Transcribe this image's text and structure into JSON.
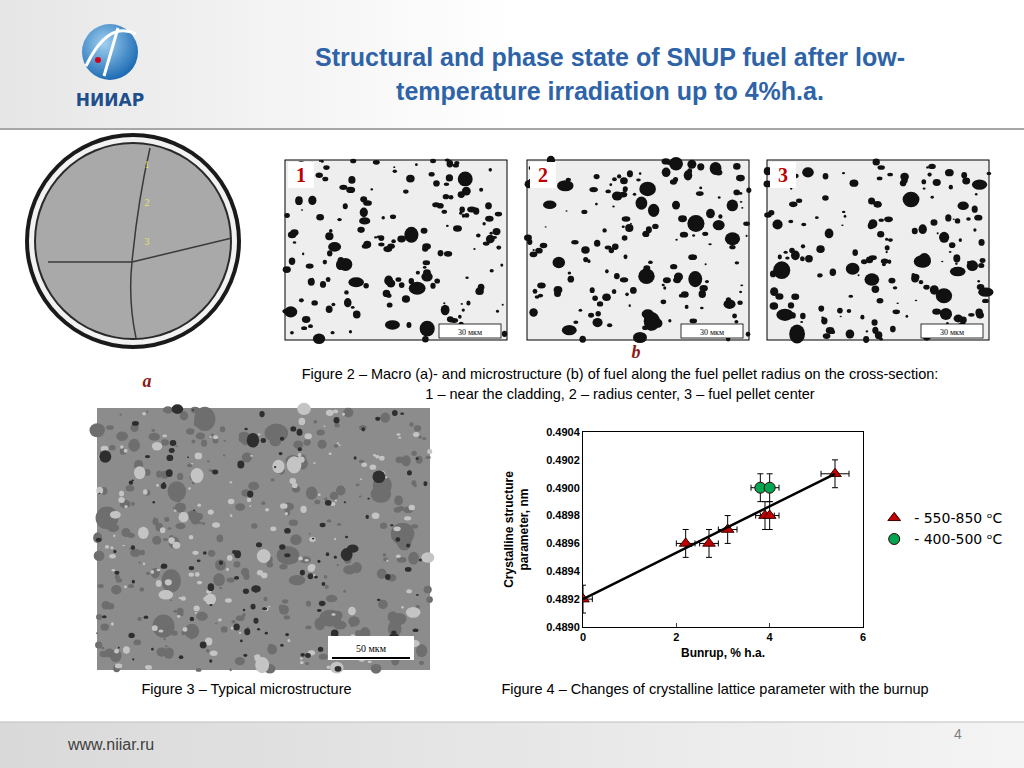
{
  "slide": {
    "logo_text": "НИИАР",
    "title": "Structural and phase state of SNUP fuel after low-temperature irradiation up to 4%h.a.",
    "figure2": {
      "macro_labels": [
        "1",
        "2",
        "3"
      ],
      "macro_letter": "a",
      "panels": [
        {
          "label": "1",
          "scale_bar": "30 мкм"
        },
        {
          "label": "2",
          "scale_bar": "30 мкм"
        },
        {
          "label": "3",
          "scale_bar": "30 мкм"
        }
      ],
      "micro_letter": "b",
      "caption": [
        "Figure 2 – Macro (a)- and microstructure (b) of fuel along the fuel pellet radius on the cross-section:",
        "1 – near the cladding, 2 – radius center, 3 – fuel pellet center"
      ]
    },
    "figure3": {
      "scale_bar": "50 мкм",
      "caption": "Figure 3 – Typical microstructure"
    },
    "figure4_caption": "Figure 4 – Changes of crystalline lattice parameter with the burnup",
    "footer": "www.niiar.ru",
    "page": 4
  },
  "chart_data": {
    "type": "scatter",
    "xlabel": "Bunrup, % h.a.",
    "ylabel": [
      "Crystalline structure",
      "parameter, nm"
    ],
    "xlim": [
      0,
      6
    ],
    "xticks": [
      0,
      2,
      4,
      6
    ],
    "ylim": [
      0.489,
      0.4904
    ],
    "yticks": [
      {
        "value": 0.489,
        "label": "0.4890"
      },
      0.4892,
      0.4894,
      0.4896,
      0.4898,
      {
        "value": 0.49,
        "label": "0.4900"
      },
      0.4902,
      0.4904
    ],
    "grid": false,
    "legend": "right",
    "series": [
      {
        "name": "- 550-850 ᵒC",
        "type": "scatter",
        "color": "#c00000",
        "marker": "triangle-up",
        "x": [
          0,
          2.2,
          2.7,
          3.1,
          3.9,
          4.0,
          5.4
        ],
        "values": [
          0.4892,
          0.4896,
          0.4896,
          0.4897,
          0.4898,
          0.4898,
          0.4901
        ],
        "x_errors": [
          0.2,
          0.2,
          0.2,
          0.2,
          0.2,
          0.2,
          0.3
        ],
        "y_errors": [
          0.0001,
          0.0001,
          0.0001,
          0.0001,
          0.0001,
          0.0001,
          0.0001
        ]
      },
      {
        "name": "- 400-500 ᵒC",
        "type": "scatter",
        "color": "#00a651",
        "marker": "circle",
        "x": [
          3.8,
          4.0
        ],
        "values": [
          0.49,
          0.49
        ],
        "x_errors": [
          0.2,
          0.2
        ],
        "y_errors": [
          0.0001,
          0.0001
        ]
      },
      {
        "type": "line",
        "color": "#000000",
        "line_style": "solid",
        "x": [
          0,
          5.4
        ],
        "values": [
          0.4892,
          0.4901
        ]
      }
    ]
  }
}
